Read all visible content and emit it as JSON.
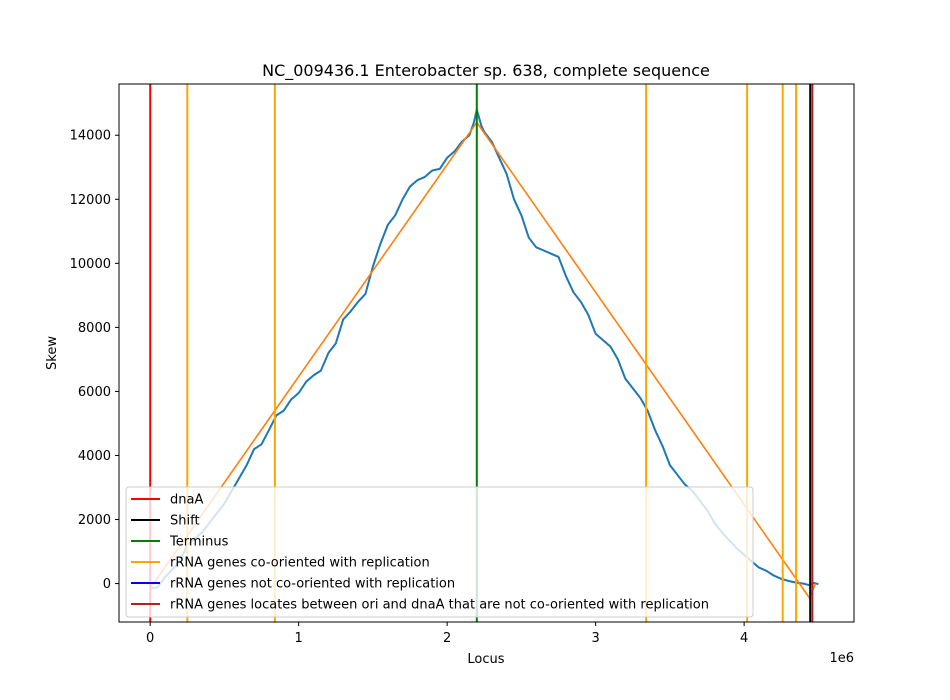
{
  "chart_data": {
    "type": "line",
    "title": "NC_009436.1 Enterobacter sp. 638, complete sequence",
    "xlabel": "Locus",
    "ylabel": "Skew",
    "x_offset_label": "1e6",
    "xlim": [
      -210000,
      4740000
    ],
    "ylim": [
      -1200,
      15600
    ],
    "x_ticks": [
      {
        "value": 0,
        "label": "0"
      },
      {
        "value": 1000000,
        "label": "1"
      },
      {
        "value": 2000000,
        "label": "2"
      },
      {
        "value": 3000000,
        "label": "3"
      },
      {
        "value": 4000000,
        "label": "4"
      }
    ],
    "y_ticks": [
      {
        "value": 0,
        "label": "0"
      },
      {
        "value": 2000,
        "label": "2000"
      },
      {
        "value": 4000,
        "label": "4000"
      },
      {
        "value": 6000,
        "label": "6000"
      },
      {
        "value": 8000,
        "label": "8000"
      },
      {
        "value": 10000,
        "label": "10000"
      },
      {
        "value": 12000,
        "label": "12000"
      },
      {
        "value": 14000,
        "label": "14000"
      }
    ],
    "skew_series": {
      "color": "#1f77b4",
      "points": [
        [
          0,
          -150
        ],
        [
          50000,
          -120
        ],
        [
          100000,
          200
        ],
        [
          150000,
          450
        ],
        [
          200000,
          700
        ],
        [
          250000,
          1200
        ],
        [
          300000,
          1400
        ],
        [
          350000,
          1600
        ],
        [
          400000,
          1900
        ],
        [
          450000,
          2200
        ],
        [
          500000,
          2500
        ],
        [
          550000,
          2900
        ],
        [
          600000,
          3300
        ],
        [
          650000,
          3700
        ],
        [
          700000,
          4200
        ],
        [
          750000,
          4350
        ],
        [
          800000,
          4800
        ],
        [
          850000,
          5250
        ],
        [
          900000,
          5400
        ],
        [
          950000,
          5750
        ],
        [
          1000000,
          5950
        ],
        [
          1050000,
          6300
        ],
        [
          1100000,
          6500
        ],
        [
          1150000,
          6650
        ],
        [
          1200000,
          7200
        ],
        [
          1250000,
          7500
        ],
        [
          1300000,
          8250
        ],
        [
          1350000,
          8500
        ],
        [
          1400000,
          8800
        ],
        [
          1450000,
          9050
        ],
        [
          1500000,
          9900
        ],
        [
          1550000,
          10600
        ],
        [
          1600000,
          11200
        ],
        [
          1650000,
          11500
        ],
        [
          1700000,
          12000
        ],
        [
          1750000,
          12400
        ],
        [
          1800000,
          12600
        ],
        [
          1850000,
          12700
        ],
        [
          1900000,
          12900
        ],
        [
          1950000,
          12950
        ],
        [
          2000000,
          13300
        ],
        [
          2050000,
          13500
        ],
        [
          2100000,
          13800
        ],
        [
          2150000,
          14000
        ],
        [
          2180000,
          14400
        ],
        [
          2200000,
          14800
        ],
        [
          2230000,
          14300
        ],
        [
          2250000,
          14100
        ],
        [
          2300000,
          13800
        ],
        [
          2350000,
          13300
        ],
        [
          2400000,
          12800
        ],
        [
          2450000,
          12000
        ],
        [
          2500000,
          11500
        ],
        [
          2550000,
          10800
        ],
        [
          2600000,
          10500
        ],
        [
          2650000,
          10400
        ],
        [
          2700000,
          10300
        ],
        [
          2750000,
          10200
        ],
        [
          2800000,
          9600
        ],
        [
          2850000,
          9100
        ],
        [
          2900000,
          8800
        ],
        [
          2950000,
          8400
        ],
        [
          3000000,
          7800
        ],
        [
          3050000,
          7600
        ],
        [
          3100000,
          7400
        ],
        [
          3150000,
          7000
        ],
        [
          3200000,
          6400
        ],
        [
          3250000,
          6100
        ],
        [
          3300000,
          5800
        ],
        [
          3350000,
          5400
        ],
        [
          3400000,
          4800
        ],
        [
          3450000,
          4300
        ],
        [
          3500000,
          3700
        ],
        [
          3550000,
          3400
        ],
        [
          3600000,
          3100
        ],
        [
          3650000,
          2900
        ],
        [
          3700000,
          2600
        ],
        [
          3750000,
          2300
        ],
        [
          3800000,
          1900
        ],
        [
          3850000,
          1600
        ],
        [
          3900000,
          1350
        ],
        [
          3950000,
          1100
        ],
        [
          4000000,
          900
        ],
        [
          4050000,
          700
        ],
        [
          4100000,
          500
        ],
        [
          4150000,
          400
        ],
        [
          4200000,
          250
        ],
        [
          4250000,
          150
        ],
        [
          4300000,
          80
        ],
        [
          4350000,
          30
        ],
        [
          4400000,
          0
        ],
        [
          4440000,
          -50
        ],
        [
          4470000,
          20
        ],
        [
          4500000,
          -20
        ]
      ]
    },
    "fit_series": {
      "color": "#ff7f0e",
      "points": [
        [
          0,
          -150
        ],
        [
          2200000,
          14400
        ],
        [
          4440000,
          -450
        ],
        [
          4480000,
          0
        ]
      ]
    },
    "vlines": [
      {
        "category": "dnaA",
        "x": 0,
        "color": "#ff0000"
      },
      {
        "category": "rRNA_co",
        "x": 250000,
        "color": "#ffa500"
      },
      {
        "category": "rRNA_co",
        "x": 840000,
        "color": "#ffa500"
      },
      {
        "category": "terminus",
        "x": 2200000,
        "color": "#008000"
      },
      {
        "category": "rRNA_co",
        "x": 3340000,
        "color": "#ffa500"
      },
      {
        "category": "rRNA_co",
        "x": 4020000,
        "color": "#ffa500"
      },
      {
        "category": "rRNA_co",
        "x": 4260000,
        "color": "#ffa500"
      },
      {
        "category": "rRNA_co",
        "x": 4350000,
        "color": "#ffa500"
      },
      {
        "category": "shift",
        "x": 4445000,
        "color": "#000000"
      },
      {
        "category": "rRNA_between",
        "x": 4460000,
        "color": "#b22222"
      }
    ],
    "legend": {
      "placement": "bottom-left",
      "entries": [
        {
          "label": "dnaA",
          "color": "#ff0000"
        },
        {
          "label": "Shift",
          "color": "#000000"
        },
        {
          "label": "Terminus",
          "color": "#008000"
        },
        {
          "label": "rRNA genes co-oriented with replication",
          "color": "#ffa500"
        },
        {
          "label": "rRNA genes not co-oriented with replication",
          "color": "#0000ff"
        },
        {
          "label": "rRNA genes locates between ori and dnaA that are not co-oriented with replication",
          "color": "#b22222"
        }
      ]
    },
    "grid": false
  }
}
